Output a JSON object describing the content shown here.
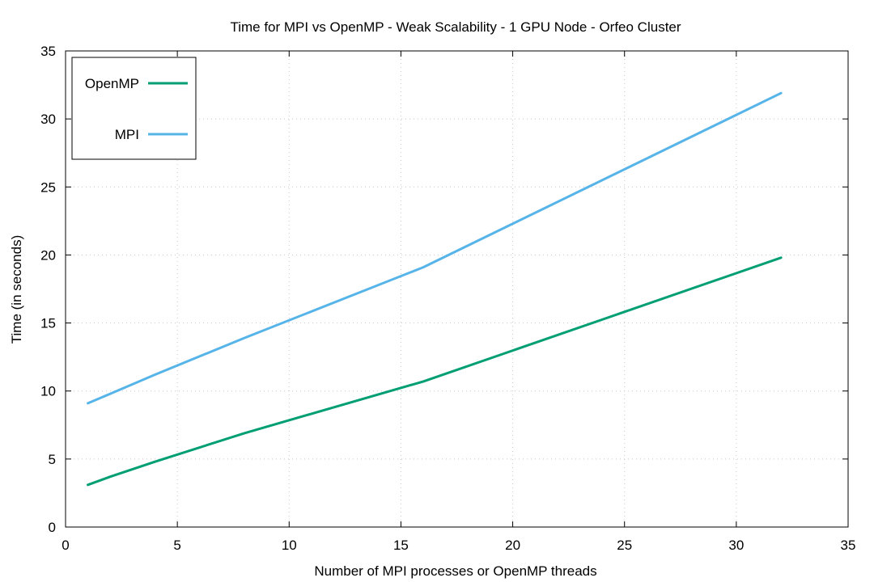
{
  "chart_data": {
    "type": "line",
    "title": "Time for MPI vs OpenMP - Weak Scalability - 1 GPU Node - Orfeo Cluster",
    "xlabel": "Number of MPI processes or OpenMP threads",
    "ylabel": "Time (in seconds)",
    "xlim": [
      0,
      35
    ],
    "ylim": [
      0,
      35
    ],
    "xticks": [
      "0",
      "5",
      "10",
      "15",
      "20",
      "25",
      "30",
      "35"
    ],
    "yticks": [
      "0",
      "5",
      "10",
      "15",
      "20",
      "25",
      "30",
      "35"
    ],
    "grid": true,
    "legend_position": "top-left",
    "series": [
      {
        "name": "OpenMP",
        "color": "#009e73",
        "x": [
          1,
          2,
          4,
          8,
          16,
          32
        ],
        "y": [
          3.1,
          3.7,
          4.8,
          6.9,
          10.7,
          19.8
        ]
      },
      {
        "name": "MPI",
        "color": "#56b4e9",
        "x": [
          1,
          2,
          4,
          8,
          16,
          32
        ],
        "y": [
          9.1,
          9.8,
          11.2,
          13.9,
          19.1,
          31.9
        ]
      }
    ]
  }
}
